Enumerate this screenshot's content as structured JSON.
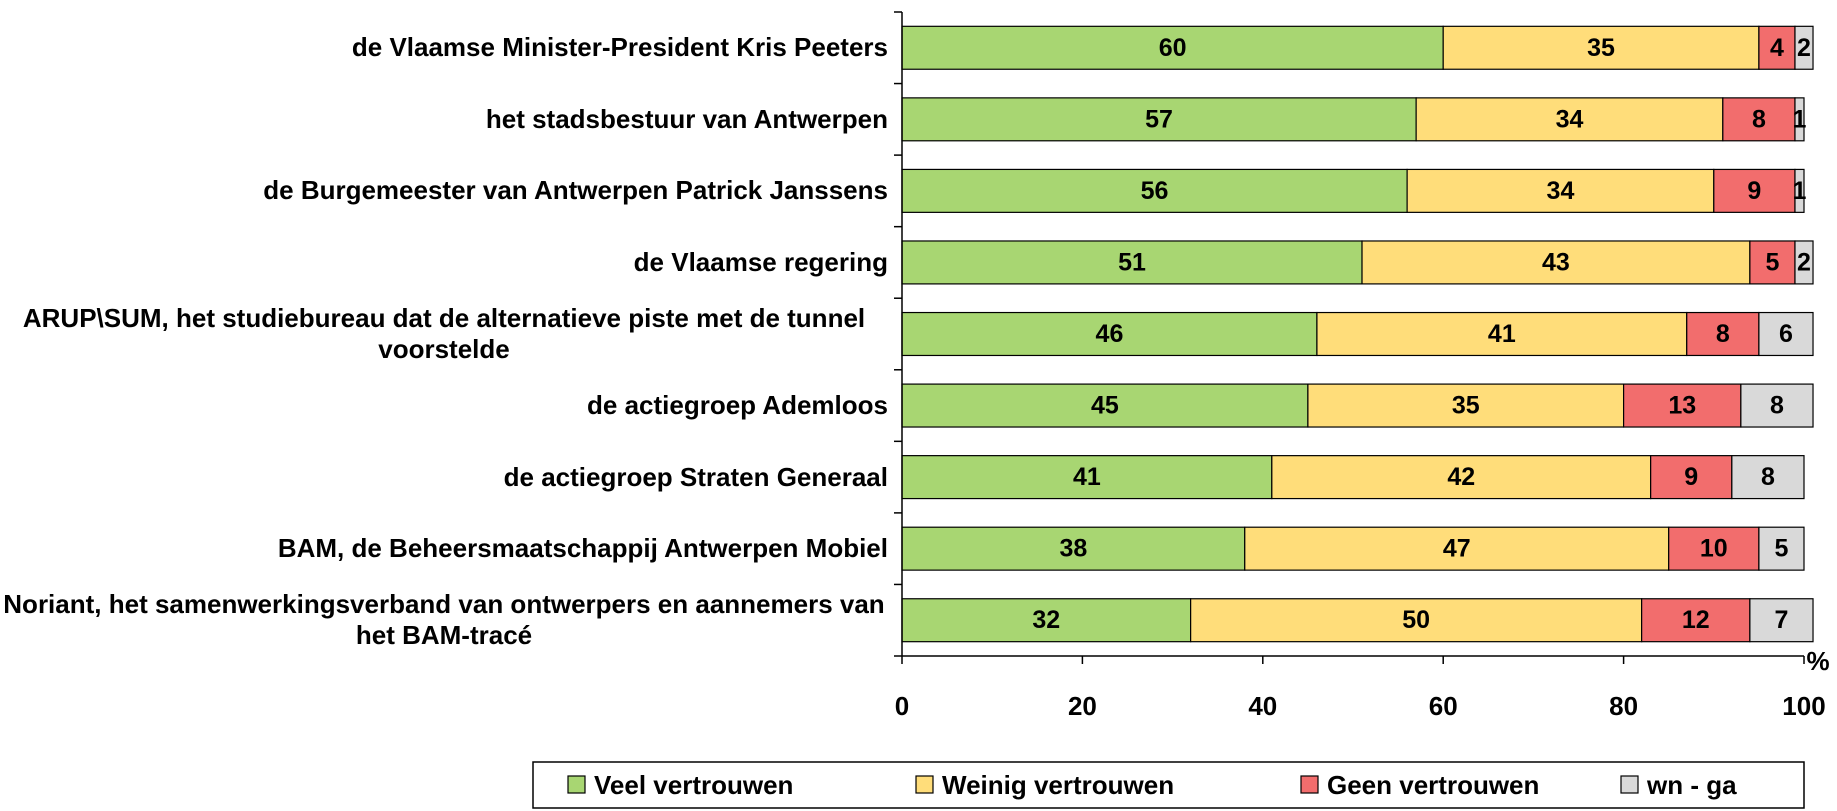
{
  "chart_data": {
    "type": "stacked-bar-horizontal",
    "categories": [
      "de Vlaamse Minister-President Kris Peeters",
      "het stadsbestuur van Antwerpen",
      "de Burgemeester van Antwerpen Patrick Janssens",
      "de Vlaamse regering",
      "ARUP\\SUM, het studiebureau dat de alternatieve piste met de tunnel voorstelde",
      "de actiegroep Ademloos",
      "de actiegroep Straten Generaal",
      "BAM, de Beheersmaatschappij Antwerpen Mobiel",
      "Noriant, het samenwerkingsverband van ontwerpers en aannemers van het BAM-tracé"
    ],
    "series": [
      {
        "name": "Veel vertrouwen",
        "color": "#a8d672",
        "values": [
          60,
          57,
          56,
          51,
          46,
          45,
          41,
          38,
          32
        ]
      },
      {
        "name": "Weinig vertrouwen",
        "color": "#ffdd7a",
        "values": [
          35,
          34,
          34,
          43,
          41,
          35,
          42,
          47,
          50
        ]
      },
      {
        "name": "Geen vertrouwen",
        "color": "#f26d6d",
        "values": [
          4,
          8,
          9,
          5,
          8,
          13,
          9,
          10,
          12
        ]
      },
      {
        "name": "wn - ga",
        "color": "#d9d9d9",
        "values": [
          2,
          1,
          1,
          2,
          6,
          8,
          8,
          5,
          7
        ]
      }
    ],
    "x_label": "%",
    "xlim": [
      0,
      100
    ],
    "xticks": [
      0,
      20,
      40,
      60,
      80,
      100
    ],
    "legend": "bottom"
  }
}
